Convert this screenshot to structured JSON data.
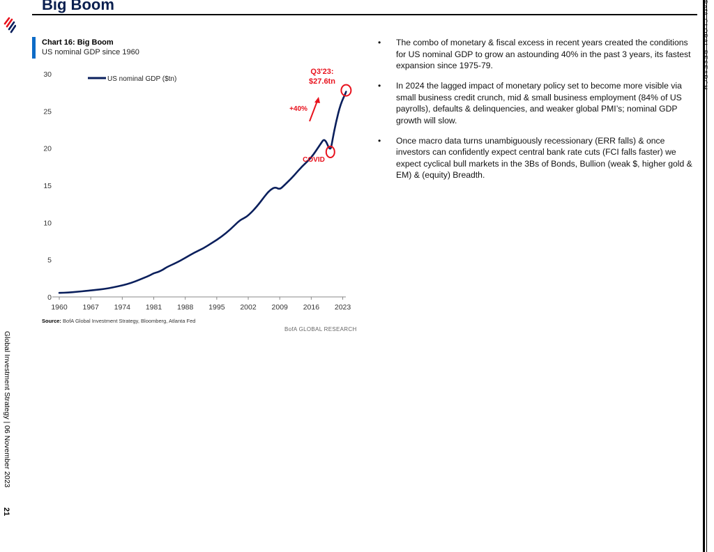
{
  "header": {
    "title": "Big Boom",
    "corner_label": "BofA GLOBAL RESEARCH",
    "side_label": "Global Investment Strategy | 06 November 2023",
    "page_number": "21"
  },
  "chart_panel": {
    "title": "Chart 16: Big Boom",
    "subtitle": "US nominal GDP since 1960",
    "source_label": "Source:",
    "source_text": "BofA Global Investment Strategy, Bloomberg, Atlanta Fed",
    "brand": "BofA GLOBAL RESEARCH"
  },
  "chart_data": {
    "type": "line",
    "title": "Chart 16: Big Boom",
    "subtitle": "US nominal GDP since 1960",
    "xlabel": "",
    "ylabel": "",
    "xlim": [
      1960,
      2024
    ],
    "ylim": [
      0,
      30
    ],
    "yticks": [
      0,
      5,
      10,
      15,
      20,
      25,
      30
    ],
    "xticks": [
      1960,
      1967,
      1974,
      1981,
      1988,
      1995,
      2002,
      2009,
      2016,
      2023
    ],
    "legend": "top-left",
    "grid": false,
    "series": [
      {
        "name": "US nominal GDP ($tn)",
        "color": "#0a1f5c",
        "x": [
          1960,
          1962,
          1964,
          1966,
          1968,
          1970,
          1972,
          1974,
          1976,
          1978,
          1980,
          1981,
          1982,
          1983,
          1984,
          1986,
          1988,
          1990,
          1992,
          1994,
          1996,
          1998,
          2000,
          2001,
          2002,
          2004,
          2006,
          2007,
          2008,
          2009,
          2010,
          2012,
          2014,
          2016,
          2018,
          2019,
          2020.25,
          2020.75,
          2021.5,
          2022.5,
          2023.75
        ],
        "y": [
          0.54,
          0.59,
          0.69,
          0.81,
          0.94,
          1.07,
          1.28,
          1.55,
          1.88,
          2.35,
          2.86,
          3.2,
          3.35,
          3.64,
          4.04,
          4.58,
          5.24,
          5.96,
          6.52,
          7.29,
          8.07,
          9.06,
          10.25,
          10.58,
          10.94,
          12.2,
          13.82,
          14.45,
          14.77,
          14.45,
          15.0,
          16.2,
          17.6,
          18.7,
          20.5,
          21.4,
          19.5,
          21.2,
          23.5,
          25.9,
          27.6
        ]
      }
    ],
    "annotations": [
      {
        "text": "Q3'23:",
        "color": "#e8121d"
      },
      {
        "text": "$27.6tn",
        "color": "#e8121d"
      },
      {
        "text": "+40%",
        "color": "#e8121d"
      },
      {
        "text": "COVID",
        "color": "#e8121d"
      }
    ]
  },
  "bullets": [
    "The combo of monetary & fiscal excess in recent years created the conditions for US nominal GDP to grow an astounding 40% in the past 3 years, its fastest expansion since 1975-79.",
    "In 2024 the lagged impact of monetary policy set to become more visible via small business credit crunch, mid & small business employment (84% of US payrolls), defaults & delinquencies, and weaker global PMI’s; nominal GDP growth will slow.",
    "Once macro data turns unambiguously recessionary (ERR falls) & once investors can confidently expect central bank rate cuts (FCI falls faster) we expect cyclical bull markets in  the 3Bs of Bonds, Bullion (weak $, higher gold & EM) & (equity) Breadth."
  ],
  "colors": {
    "accent_red": "#e8121d",
    "line_navy": "#0a1f5c",
    "title_navy": "#0a1f4f",
    "chart_bar_blue": "#0d6bc7"
  },
  "icons": {
    "logo": "bofa-flag-logo-icon"
  }
}
